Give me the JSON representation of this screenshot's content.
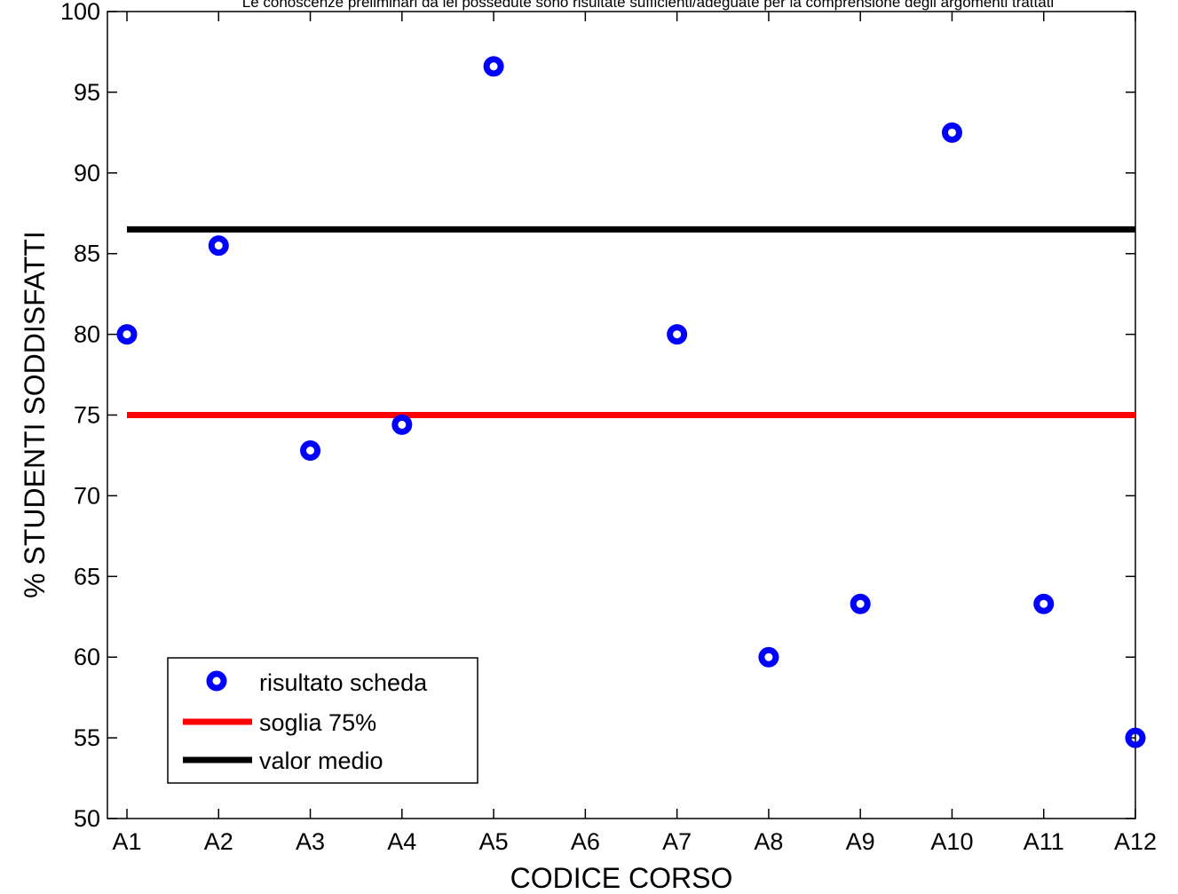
{
  "chart_data": {
    "type": "scatter",
    "title": "Le conoscenze preliminari da lei possedute sono risultate sufficienti/adeguate per la comprensione degli argomenti trattati",
    "xlabel": "CODICE CORSO",
    "ylabel": "% STUDENTI SODDISFATTI",
    "categories": [
      "A1",
      "A2",
      "A3",
      "A4",
      "A5",
      "A6",
      "A7",
      "A8",
      "A9",
      "A10",
      "A11",
      "A12"
    ],
    "ylim": [
      50,
      100
    ],
    "yticks": [
      50,
      55,
      60,
      65,
      70,
      75,
      80,
      85,
      90,
      95,
      100
    ],
    "grid": false,
    "legend_position": "bottom-left",
    "series": [
      {
        "name": "risultato scheda",
        "kind": "markers",
        "color": "#0000ff",
        "points": [
          {
            "x": "A1",
            "y": 80.0
          },
          {
            "x": "A2",
            "y": 85.5
          },
          {
            "x": "A3",
            "y": 72.8
          },
          {
            "x": "A4",
            "y": 74.4
          },
          {
            "x": "A5",
            "y": 96.6
          },
          {
            "x": "A7",
            "y": 80.0
          },
          {
            "x": "A8",
            "y": 60.0
          },
          {
            "x": "A9",
            "y": 63.3
          },
          {
            "x": "A10",
            "y": 92.5
          },
          {
            "x": "A11",
            "y": 63.3
          },
          {
            "x": "A12",
            "y": 55.0
          }
        ]
      },
      {
        "name": "soglia 75%",
        "kind": "hline",
        "color": "#ff0000",
        "y": 75
      },
      {
        "name": "valor medio",
        "kind": "hline",
        "color": "#000000",
        "y": 86.5
      }
    ]
  }
}
